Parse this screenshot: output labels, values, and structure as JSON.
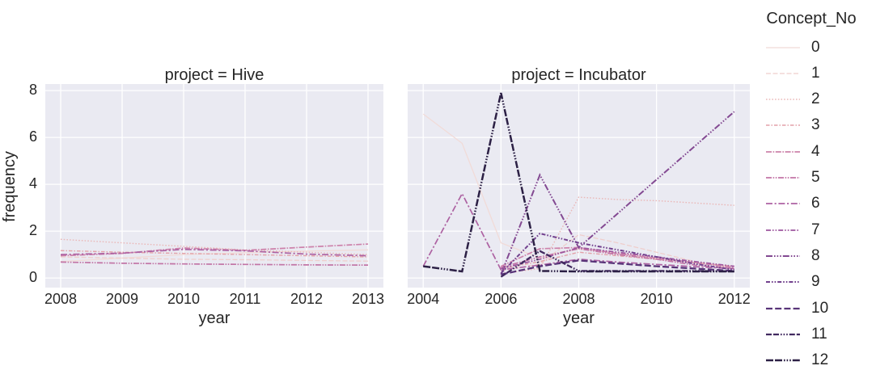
{
  "style": {
    "axes_background": "#eaeaf2",
    "grid_color": "#ffffff",
    "text_color": "#262626",
    "figure_background": "#ffffff"
  },
  "legend": {
    "title": "Concept_No",
    "items": [
      {
        "label": "0",
        "color": "#f1dbd8",
        "dash": "",
        "width": 1.3
      },
      {
        "label": "1",
        "color": "#efcecc",
        "dash": "6,2.5",
        "width": 1.3
      },
      {
        "label": "2",
        "color": "#eab8b8",
        "dash": "1.6,2.1",
        "width": 1.4
      },
      {
        "label": "3",
        "color": "#e3a1a8",
        "dash": "4.5,2,1.5,2",
        "width": 1.4
      },
      {
        "label": "4",
        "color": "#cd82ab",
        "dash": "7,1.6,1.6,1.6",
        "width": 1.7
      },
      {
        "label": "5",
        "color": "#c275a6",
        "dash": "7,1.6,1.6,1.6,1.6,1.6",
        "width": 1.7
      },
      {
        "label": "6",
        "color": "#ad62a2",
        "dash": "8,2.6,2.2,2.6",
        "width": 1.7
      },
      {
        "label": "7",
        "color": "#9d569e",
        "dash": "6,2,1.6,2,1.6,2",
        "width": 1.7
      },
      {
        "label": "8",
        "color": "#834992",
        "dash": "8,2,1.6,2,1.6,2,1.6,2",
        "width": 2.0
      },
      {
        "label": "9",
        "color": "#72418e",
        "dash": "5,2,1.6,2,1.6,2",
        "width": 2.0
      },
      {
        "label": "10",
        "color": "#583478",
        "dash": "8,3.2",
        "width": 2.3
      },
      {
        "label": "11",
        "color": "#41295f",
        "dash": "7,2,7,2,1.6,2,1.6,2,1.6,2",
        "width": 2.3
      },
      {
        "label": "12",
        "color": "#2c2045",
        "dash": "9,2,9,2,1.6,2,1.6,2,1.6,2",
        "width": 2.5
      }
    ]
  },
  "chart_data": [
    {
      "type": "line",
      "title": "project = Hive",
      "xlabel": "year",
      "ylabel": "frequency",
      "grid": true,
      "xlim": [
        2007.75,
        2013.25
      ],
      "ylim": [
        -0.41,
        8.28
      ],
      "xticks": [
        2008,
        2009,
        2010,
        2011,
        2012,
        2013
      ],
      "yticks": [
        0,
        2,
        4,
        6,
        8
      ],
      "x": [
        2008,
        2009,
        2010,
        2011,
        2012,
        2013
      ],
      "series": [
        {
          "name": "0",
          "values": [
            0.7,
            0.85,
            1.0,
            1.08,
            1.15,
            1.2
          ]
        },
        {
          "name": "1",
          "values": [
            0.9,
            0.85,
            0.8,
            0.78,
            0.75,
            0.72
          ]
        },
        {
          "name": "2",
          "values": [
            1.65,
            1.5,
            1.35,
            1.2,
            1.1,
            1.0
          ]
        },
        {
          "name": "3",
          "values": [
            1.17,
            1.1,
            1.05,
            1.0,
            0.95,
            0.9
          ]
        },
        {
          "name": "4",
          "values": [
            0.95,
            1.05,
            1.28,
            1.18,
            1.32,
            1.45
          ]
        },
        {
          "name": "5",
          "values": [
            0.68,
            0.63,
            0.6,
            0.58,
            0.56,
            0.55
          ]
        },
        {
          "name": "6",
          "values": [
            1.0,
            1.06,
            1.22,
            1.16,
            1.02,
            0.95
          ]
        }
      ]
    },
    {
      "type": "line",
      "title": "project = Incubator",
      "xlabel": "year",
      "ylabel": "frequency",
      "grid": true,
      "xlim": [
        2003.6,
        2012.4
      ],
      "ylim": [
        -0.41,
        8.28
      ],
      "xticks": [
        2004,
        2006,
        2008,
        2010,
        2012
      ],
      "yticks": [
        0,
        2,
        4,
        6,
        8
      ],
      "x": [
        2004,
        2005,
        2006,
        2007,
        2008,
        2009,
        2010,
        2011,
        2012
      ],
      "series": [
        {
          "name": "0",
          "values": [
            7.0,
            5.75,
            1.5,
            0.85,
            1.25,
            1.05,
            0.85,
            0.65,
            0.5
          ]
        },
        {
          "name": "1",
          "values": [
            null,
            null,
            0.3,
            0.6,
            1.85,
            1.5,
            1.1,
            0.7,
            0.4
          ]
        },
        {
          "name": "2",
          "values": [
            null,
            null,
            0.2,
            0.4,
            3.45,
            3.35,
            3.3,
            3.2,
            3.1
          ]
        },
        {
          "name": "3",
          "values": [
            null,
            null,
            0.4,
            0.7,
            1.1,
            0.95,
            0.8,
            0.65,
            0.5
          ]
        },
        {
          "name": "4",
          "values": [
            null,
            null,
            0.5,
            1.25,
            1.3,
            1.05,
            0.85,
            0.65,
            0.45
          ]
        },
        {
          "name": "5",
          "values": [
            null,
            null,
            0.45,
            0.9,
            1.25,
            1.0,
            0.8,
            0.55,
            0.4
          ]
        },
        {
          "name": "6",
          "values": [
            0.5,
            3.6,
            0.35,
            0.55,
            0.8,
            0.68,
            0.58,
            0.48,
            0.4
          ]
        },
        {
          "name": "7",
          "values": [
            null,
            null,
            0.4,
            0.8,
            1.3,
            1.1,
            0.9,
            0.7,
            0.5
          ]
        },
        {
          "name": "8",
          "values": [
            null,
            null,
            0.15,
            4.4,
            1.3,
            null,
            null,
            null,
            7.1
          ]
        },
        {
          "name": "9",
          "values": [
            null,
            null,
            0.2,
            1.9,
            1.5,
            1.2,
            0.9,
            0.6,
            0.35
          ]
        },
        {
          "name": "10",
          "values": [
            null,
            null,
            0.15,
            0.5,
            0.75,
            0.62,
            0.5,
            0.4,
            0.3
          ]
        },
        {
          "name": "11",
          "values": [
            null,
            null,
            0.05,
            1.15,
            0.3,
            0.3,
            0.3,
            0.3,
            0.28
          ]
        },
        {
          "name": "12",
          "values": [
            0.5,
            0.28,
            7.9,
            0.3,
            0.28,
            0.28,
            0.28,
            0.28,
            0.28
          ]
        }
      ]
    }
  ]
}
